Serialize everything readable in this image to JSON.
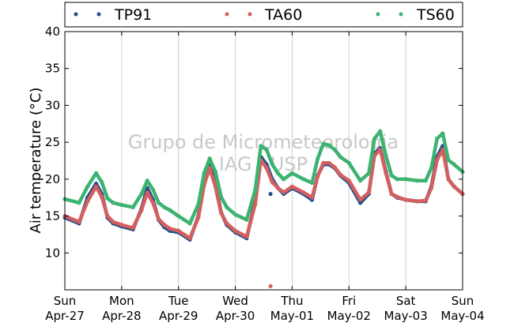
{
  "chart_data": {
    "type": "scatter",
    "title": "",
    "ylabel": "Air temperature (°C)",
    "xlabel": "",
    "ylim": [
      5,
      40
    ],
    "yticks": [
      10,
      15,
      20,
      25,
      30,
      35,
      40
    ],
    "xlim": [
      0,
      7
    ],
    "xticks": [
      {
        "day": "Sun",
        "date": "Apr-27"
      },
      {
        "day": "Mon",
        "date": "Apr-28"
      },
      {
        "day": "Tue",
        "date": "Apr-29"
      },
      {
        "day": "Wed",
        "date": "Apr-30"
      },
      {
        "day": "Thu",
        "date": "May-01"
      },
      {
        "day": "Fri",
        "date": "May-02"
      },
      {
        "day": "Sat",
        "date": "May-03"
      },
      {
        "day": "Sun",
        "date": "May-04"
      }
    ],
    "grid": true,
    "legend_position": "top",
    "watermark": [
      "Grupo de Micrometeorologia",
      "IAG / USP"
    ],
    "series": [
      {
        "name": "TP91",
        "color": "#1f4e8c",
        "x": [
          0,
          0.25,
          0.4,
          0.55,
          0.65,
          0.75,
          0.85,
          1.0,
          1.2,
          1.35,
          1.45,
          1.55,
          1.65,
          1.75,
          1.85,
          2.0,
          2.2,
          2.35,
          2.45,
          2.55,
          2.65,
          2.75,
          2.85,
          3.0,
          3.2,
          3.35,
          3.45,
          3.55,
          3.65,
          3.75,
          3.85,
          4.0,
          4.2,
          4.35,
          4.45,
          4.55,
          4.65,
          4.75,
          4.85,
          5.0,
          5.2,
          5.35,
          5.45,
          5.55,
          5.65,
          5.75,
          5.85,
          6.0,
          6.2,
          6.35,
          6.45,
          6.55,
          6.65,
          6.75,
          6.85,
          7.0
        ],
        "y": [
          14.8,
          14.0,
          17.5,
          19.4,
          18.0,
          14.8,
          14.0,
          13.6,
          13.2,
          16.0,
          18.8,
          17.2,
          14.5,
          13.5,
          13.0,
          12.8,
          11.8,
          15.0,
          19.5,
          22.0,
          19.5,
          15.5,
          13.8,
          12.8,
          12.0,
          17.0,
          23.0,
          22.0,
          20.0,
          18.8,
          18.0,
          18.8,
          18.0,
          17.2,
          20.5,
          22.0,
          22.0,
          21.5,
          20.5,
          19.5,
          16.8,
          18.0,
          23.5,
          24.2,
          21.0,
          18.0,
          17.5,
          17.2,
          17.0,
          17.0,
          19.0,
          23.0,
          24.5,
          20.0,
          19.0,
          18.0
        ]
      },
      {
        "name": "TA60",
        "color": "#d45f5f",
        "x": [
          0,
          0.25,
          0.4,
          0.55,
          0.65,
          0.75,
          0.85,
          1.0,
          1.2,
          1.35,
          1.45,
          1.55,
          1.65,
          1.75,
          1.85,
          2.0,
          2.2,
          2.35,
          2.45,
          2.55,
          2.65,
          2.75,
          2.85,
          3.0,
          3.2,
          3.35,
          3.45,
          3.55,
          3.65,
          3.75,
          3.85,
          4.0,
          4.2,
          4.35,
          4.45,
          4.55,
          4.65,
          4.75,
          4.85,
          5.0,
          5.2,
          5.35,
          5.45,
          5.55,
          5.65,
          5.75,
          5.85,
          6.0,
          6.2,
          6.35,
          6.45,
          6.55,
          6.65,
          6.75,
          6.85,
          7.0
        ],
        "y": [
          15.0,
          14.2,
          17.0,
          19.0,
          17.6,
          15.0,
          14.2,
          13.8,
          13.4,
          15.8,
          18.2,
          16.8,
          14.6,
          13.8,
          13.3,
          13.0,
          12.0,
          14.8,
          19.2,
          21.5,
          19.0,
          15.4,
          14.0,
          13.0,
          12.2,
          16.6,
          22.6,
          21.5,
          19.6,
          18.8,
          18.2,
          19.0,
          18.2,
          17.5,
          20.4,
          22.2,
          22.2,
          21.6,
          20.6,
          19.8,
          17.2,
          18.2,
          23.2,
          24.0,
          20.8,
          18.0,
          17.6,
          17.2,
          17.0,
          17.1,
          18.8,
          22.6,
          24.0,
          20.0,
          19.0,
          18.0
        ]
      },
      {
        "name": "TS60",
        "color": "#3cb371",
        "x": [
          0,
          0.25,
          0.4,
          0.55,
          0.65,
          0.75,
          0.85,
          1.0,
          1.2,
          1.35,
          1.45,
          1.55,
          1.65,
          1.75,
          1.85,
          2.0,
          2.2,
          2.35,
          2.45,
          2.55,
          2.65,
          2.75,
          2.85,
          3.0,
          3.2,
          3.35,
          3.45,
          3.55,
          3.65,
          3.75,
          3.85,
          4.0,
          4.2,
          4.35,
          4.45,
          4.55,
          4.65,
          4.75,
          4.85,
          5.0,
          5.2,
          5.35,
          5.45,
          5.55,
          5.65,
          5.75,
          5.85,
          6.0,
          6.2,
          6.35,
          6.45,
          6.55,
          6.65,
          6.75,
          6.85,
          7.0
        ],
        "y": [
          17.3,
          16.8,
          19.0,
          20.8,
          19.6,
          17.4,
          16.8,
          16.5,
          16.2,
          18.0,
          19.8,
          18.6,
          16.8,
          16.2,
          15.8,
          15.0,
          14.0,
          16.6,
          20.8,
          22.8,
          21.0,
          17.6,
          16.2,
          15.2,
          14.5,
          18.5,
          24.5,
          24.0,
          22.0,
          20.8,
          20.0,
          20.8,
          20.0,
          19.5,
          22.8,
          24.8,
          24.6,
          24.0,
          23.0,
          22.2,
          19.8,
          20.8,
          25.5,
          26.5,
          23.2,
          20.5,
          20.0,
          20.0,
          19.8,
          19.8,
          21.5,
          25.5,
          26.2,
          22.6,
          22.0,
          21.0
        ]
      }
    ],
    "outliers": [
      {
        "series": "TP91",
        "x": 3.62,
        "y": 18.0
      },
      {
        "series": "TA60",
        "x": 3.62,
        "y": 5.5
      }
    ]
  }
}
